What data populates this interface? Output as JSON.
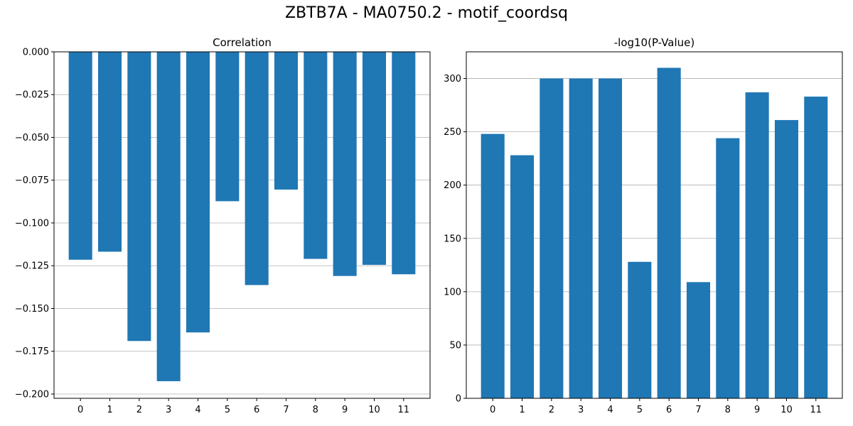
{
  "figure": {
    "title": "ZBTB7A - MA0750.2 - motif_coordsq"
  },
  "colors": {
    "bar": "#1f77b4",
    "grid": "#b0b0b0"
  },
  "chart_data": [
    {
      "type": "bar",
      "title": "Correlation",
      "xlabel": "",
      "ylabel": "",
      "categories": [
        "0",
        "1",
        "2",
        "3",
        "4",
        "5",
        "6",
        "7",
        "8",
        "9",
        "10",
        "11"
      ],
      "values": [
        -0.1215,
        -0.1168,
        -0.169,
        -0.1925,
        -0.164,
        -0.0873,
        -0.1363,
        -0.0805,
        -0.121,
        -0.131,
        -0.1245,
        -0.13
      ],
      "ylim": [
        -0.2025,
        0.0
      ],
      "yticks": [
        0.0,
        -0.025,
        -0.05,
        -0.075,
        -0.1,
        -0.125,
        -0.15,
        -0.175,
        -0.2
      ],
      "ytick_labels": [
        "0.000",
        "−0.025",
        "−0.050",
        "−0.075",
        "−0.100",
        "−0.125",
        "−0.150",
        "−0.175",
        "−0.200"
      ],
      "grid": "y"
    },
    {
      "type": "bar",
      "title": "-log10(P-Value)",
      "xlabel": "",
      "ylabel": "",
      "categories": [
        "0",
        "1",
        "2",
        "3",
        "4",
        "5",
        "6",
        "7",
        "8",
        "9",
        "10",
        "11"
      ],
      "values": [
        248,
        228,
        300,
        300,
        300,
        128,
        310,
        109,
        244,
        287,
        261,
        283
      ],
      "ylim": [
        0,
        325
      ],
      "yticks": [
        0,
        50,
        100,
        150,
        200,
        250,
        300
      ],
      "ytick_labels": [
        "0",
        "50",
        "100",
        "150",
        "200",
        "250",
        "300"
      ],
      "grid": "y"
    }
  ]
}
